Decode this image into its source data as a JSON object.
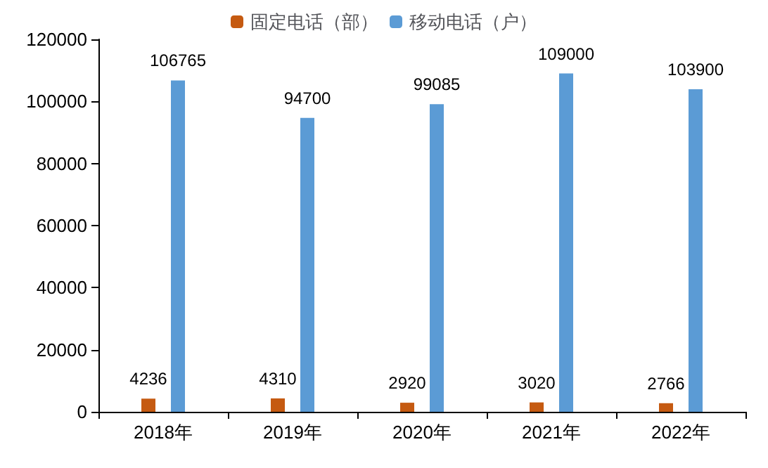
{
  "chart_data": {
    "type": "bar",
    "categories": [
      "2018年",
      "2019年",
      "2020年",
      "2021年",
      "2022年"
    ],
    "series": [
      {
        "name": "固定电话（部）",
        "color": "#c55a11",
        "values": [
          4236,
          4310,
          2920,
          3020,
          2766
        ]
      },
      {
        "name": "移动电话（户）",
        "color": "#5b9bd5",
        "values": [
          106765,
          94700,
          99085,
          109000,
          103900
        ]
      }
    ],
    "ylim": [
      0,
      120000
    ],
    "yticks": [
      0,
      20000,
      40000,
      60000,
      80000,
      100000,
      120000
    ],
    "grid": false,
    "legend": "top",
    "data_labels": true
  }
}
